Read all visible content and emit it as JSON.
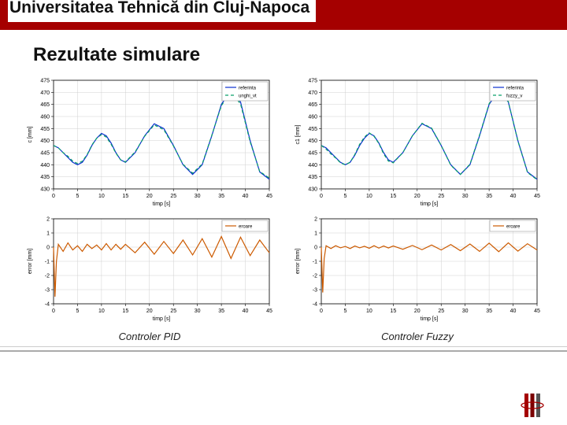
{
  "header": {
    "title": "Universitatea Tehnică din Cluj-Napoca",
    "bar_color": "#a50000"
  },
  "section_title": "Rezultate simulare",
  "captions": {
    "left": "Controler PID",
    "right": "Controler  Fuzzy"
  },
  "logo": {
    "colors": [
      "#a50000",
      "#7a0000",
      "#555555"
    ]
  },
  "chart_common": {
    "font_family": "Arial",
    "tick_font_size": 7,
    "label_font_size": 7,
    "legend_font_size": 6,
    "axis_color": "#000000",
    "grid_color": "#d0d0d0",
    "box_color": "#000000",
    "background": "#ffffff"
  },
  "top_left_chart": {
    "type": "line",
    "xlabel": "timp [s]",
    "ylabel": "c [mm]",
    "xlim": [
      0,
      45
    ],
    "ylim": [
      430,
      475
    ],
    "xticks": [
      0,
      5,
      10,
      15,
      20,
      25,
      30,
      35,
      40,
      45
    ],
    "yticks": [
      430,
      435,
      440,
      445,
      450,
      455,
      460,
      465,
      470,
      475
    ],
    "legend": [
      {
        "label": "referinta",
        "color": "#0a2ecf",
        "width": 1.2,
        "dash": "none"
      },
      {
        "label": "unghi_vt",
        "color": "#0aa06a",
        "width": 1.2,
        "dash": "4 3"
      }
    ],
    "legend_pos": "top-right",
    "series": [
      {
        "color": "#0a2ecf",
        "width": 1.2,
        "dash": "none",
        "x": [
          0,
          1,
          2,
          3,
          4,
          5,
          6,
          7,
          8,
          9,
          10,
          11,
          12,
          13,
          14,
          15,
          17,
          19,
          21,
          23,
          25,
          27,
          29,
          31,
          33,
          35,
          37,
          39,
          41,
          43,
          45
        ],
        "y": [
          448,
          447,
          445,
          443,
          441,
          440,
          441,
          444,
          448,
          451,
          453,
          452,
          449,
          445,
          442,
          441,
          445,
          452,
          457,
          455,
          448,
          440,
          436,
          440,
          452,
          465,
          471,
          466,
          450,
          437,
          434
        ]
      },
      {
        "color": "#0aa06a",
        "width": 1.2,
        "dash": "4 3",
        "x": [
          0,
          1,
          2,
          3,
          4,
          5,
          6,
          7,
          8,
          9,
          10,
          11,
          12,
          13,
          14,
          15,
          17,
          19,
          21,
          23,
          25,
          27,
          29,
          31,
          33,
          35,
          37,
          39,
          41,
          43,
          45
        ],
        "y": [
          448,
          447,
          445,
          443.5,
          441.5,
          440.5,
          441.5,
          444.2,
          448.2,
          451,
          452.5,
          451.5,
          448.5,
          444.8,
          442,
          441.2,
          445.3,
          451.8,
          456.5,
          454.5,
          447.8,
          440.2,
          436.5,
          440.3,
          452.2,
          464.5,
          470.3,
          465.2,
          449.5,
          437.2,
          434.5
        ]
      }
    ]
  },
  "top_right_chart": {
    "type": "line",
    "xlabel": "timp [s]",
    "ylabel": "c1 [mm]",
    "xlim": [
      0,
      45
    ],
    "ylim": [
      430,
      475
    ],
    "xticks": [
      0,
      5,
      10,
      15,
      20,
      25,
      30,
      35,
      40,
      45
    ],
    "yticks": [
      430,
      435,
      440,
      445,
      450,
      455,
      460,
      465,
      470,
      475
    ],
    "legend": [
      {
        "label": "referinta",
        "color": "#0a2ecf",
        "width": 1.2,
        "dash": "none"
      },
      {
        "label": "fuzzy_v",
        "color": "#0aa06a",
        "width": 1.2,
        "dash": "4 3"
      }
    ],
    "legend_pos": "top-right",
    "series": [
      {
        "color": "#0a2ecf",
        "width": 1.2,
        "dash": "none",
        "x": [
          0,
          1,
          2,
          3,
          4,
          5,
          6,
          7,
          8,
          9,
          10,
          11,
          12,
          13,
          14,
          15,
          17,
          19,
          21,
          23,
          25,
          27,
          29,
          31,
          33,
          35,
          37,
          39,
          41,
          43,
          45
        ],
        "y": [
          448,
          447,
          445,
          443,
          441,
          440,
          441,
          444,
          448,
          451,
          453,
          452,
          449,
          445,
          442,
          441,
          445,
          452,
          457,
          455,
          448,
          440,
          436,
          440,
          452,
          465,
          471,
          466,
          450,
          437,
          434
        ]
      },
      {
        "color": "#0aa06a",
        "width": 1.2,
        "dash": "4 3",
        "x": [
          0,
          1,
          2,
          3,
          4,
          5,
          6,
          7,
          8,
          9,
          10,
          11,
          12,
          13,
          14,
          15,
          17,
          19,
          21,
          23,
          25,
          27,
          29,
          31,
          33,
          35,
          37,
          39,
          41,
          43,
          45
        ],
        "y": [
          448,
          446.5,
          444.5,
          442.8,
          440.8,
          440,
          441,
          444.3,
          448.5,
          451.5,
          453.2,
          451.8,
          448.8,
          444.5,
          441.5,
          440.8,
          445,
          452,
          457.2,
          455.2,
          448,
          439.8,
          436,
          440.2,
          452.3,
          465.3,
          471.5,
          466.2,
          449.8,
          436.8,
          433.8
        ]
      }
    ]
  },
  "bottom_left_chart": {
    "type": "line",
    "xlabel": "timp [s]",
    "ylabel": "error [mm]",
    "xlim": [
      0,
      45
    ],
    "ylim": [
      -4,
      2
    ],
    "xticks": [
      0,
      5,
      10,
      15,
      20,
      25,
      30,
      35,
      40,
      45
    ],
    "yticks": [
      -4,
      -3,
      -2,
      -1,
      0,
      1,
      2
    ],
    "legend": [
      {
        "label": "eroare",
        "color": "#cc5a00",
        "width": 1.2,
        "dash": "none"
      }
    ],
    "legend_pos": "top-right",
    "series": [
      {
        "color": "#cc5a00",
        "width": 1.2,
        "dash": "none",
        "x": [
          0,
          0.3,
          0.6,
          1,
          2,
          3,
          4,
          5,
          6,
          7,
          8,
          9,
          10,
          11,
          12,
          13,
          14,
          15,
          17,
          19,
          21,
          23,
          25,
          27,
          29,
          31,
          33,
          35,
          37,
          39,
          41,
          43,
          45
        ],
        "y": [
          0,
          -3.5,
          -1,
          0.2,
          -0.3,
          0.3,
          -0.2,
          0.1,
          -0.3,
          0.2,
          -0.1,
          0.15,
          -0.2,
          0.25,
          -0.2,
          0.2,
          -0.15,
          0.2,
          -0.4,
          0.35,
          -0.5,
          0.4,
          -0.45,
          0.5,
          -0.55,
          0.6,
          -0.7,
          0.75,
          -0.8,
          0.7,
          -0.6,
          0.5,
          -0.4
        ]
      }
    ]
  },
  "bottom_right_chart": {
    "type": "line",
    "xlabel": "timp [s]",
    "ylabel": "error [mm]",
    "xlim": [
      0,
      45
    ],
    "ylim": [
      -4,
      2
    ],
    "xticks": [
      0,
      5,
      10,
      15,
      20,
      25,
      30,
      35,
      40,
      45
    ],
    "yticks": [
      -4,
      -3,
      -2,
      -1,
      0,
      1,
      2
    ],
    "legend": [
      {
        "label": "eroare",
        "color": "#cc5a00",
        "width": 1.2,
        "dash": "none"
      }
    ],
    "legend_pos": "top-right",
    "series": [
      {
        "color": "#cc5a00",
        "width": 1.2,
        "dash": "none",
        "x": [
          0,
          0.3,
          0.6,
          1,
          2,
          3,
          4,
          5,
          6,
          7,
          8,
          9,
          10,
          11,
          12,
          13,
          14,
          15,
          17,
          19,
          21,
          23,
          25,
          27,
          29,
          31,
          33,
          35,
          37,
          39,
          41,
          43,
          45
        ],
        "y": [
          0,
          -3.2,
          -0.8,
          0.1,
          -0.1,
          0.1,
          -0.05,
          0.05,
          -0.1,
          0.08,
          -0.05,
          0.06,
          -0.08,
          0.1,
          -0.07,
          0.08,
          -0.06,
          0.08,
          -0.15,
          0.12,
          -0.18,
          0.15,
          -0.2,
          0.18,
          -0.25,
          0.22,
          -0.3,
          0.28,
          -0.32,
          0.3,
          -0.28,
          0.24,
          -0.2
        ]
      }
    ]
  }
}
